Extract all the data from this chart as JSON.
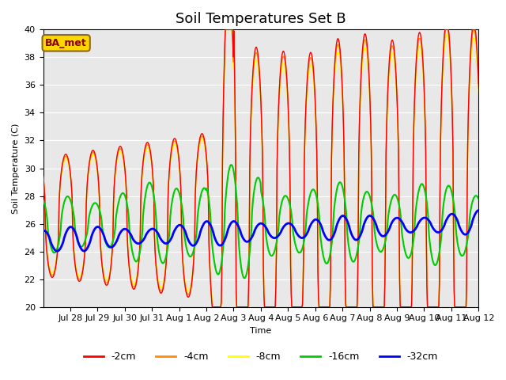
{
  "title": "Soil Temperatures Set B",
  "xlabel": "Time",
  "ylabel": "Soil Temperature (C)",
  "ylim": [
    20,
    40
  ],
  "station_label": "BA_met",
  "line_colors": {
    "-2cm": "#FF0000",
    "-4cm": "#FF8C00",
    "-8cm": "#FFFF00",
    "-16cm": "#00CC00",
    "-32cm": "#0000FF"
  },
  "line_widths": {
    "-2cm": 1.0,
    "-4cm": 1.0,
    "-8cm": 1.0,
    "-16cm": 1.5,
    "-32cm": 2.0
  },
  "xtick_labels": [
    "Jul 28",
    "Jul 29",
    "Jul 30",
    "Jul 31",
    "Aug 1",
    "Aug 2",
    "Aug 3",
    "Aug 4",
    "Aug 5",
    "Aug 6",
    "Aug 7",
    "Aug 8",
    "Aug 9",
    "Aug 10",
    "Aug 11",
    "Aug 12"
  ],
  "background_color": "#E8E8E8",
  "figure_color": "#FFFFFF",
  "title_fontsize": 13,
  "axis_fontsize": 8,
  "legend_fontsize": 9
}
